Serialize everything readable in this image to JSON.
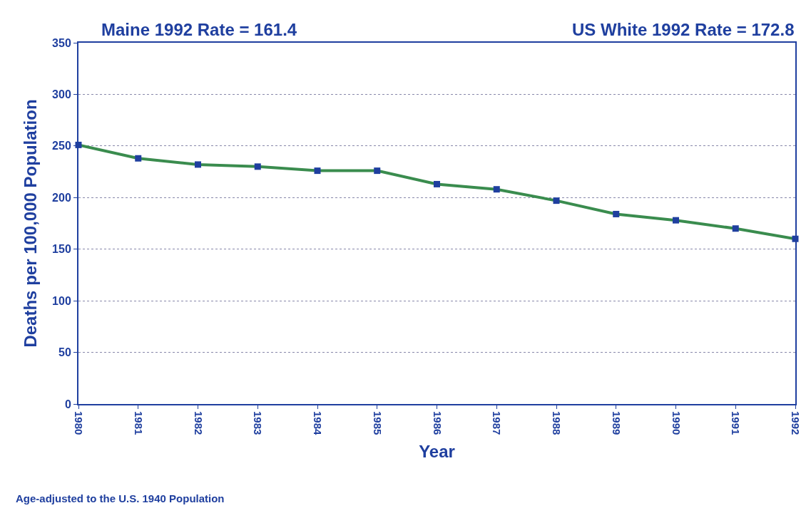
{
  "chart_data": {
    "type": "line",
    "xlabel": "Year",
    "ylabel": "Deaths per 100,000 Population",
    "annotations": [
      "Maine 1992 Rate = 161.4",
      "US White 1992 Rate = 172.8",
      "Age-adjusted to the U.S. 1940 Population"
    ],
    "x": [
      1980,
      1981,
      1982,
      1983,
      1984,
      1985,
      1986,
      1987,
      1988,
      1989,
      1990,
      1991,
      1992
    ],
    "series": [
      {
        "color": "#3a8c4e",
        "values": [
          251,
          238,
          232,
          230,
          226,
          226,
          213,
          208,
          197,
          184,
          178,
          170,
          160
        ]
      }
    ],
    "xlim": [
      1980,
      1992
    ],
    "xticks": [
      1980,
      1981,
      1982,
      1983,
      1984,
      1985,
      1986,
      1987,
      1988,
      1989,
      1990,
      1991,
      1992
    ],
    "ylim": [
      0,
      350
    ],
    "yticks": [
      0,
      50,
      100,
      150,
      200,
      250,
      300,
      350
    ],
    "grid": "y",
    "marker": "square",
    "line_style": "solid"
  }
}
